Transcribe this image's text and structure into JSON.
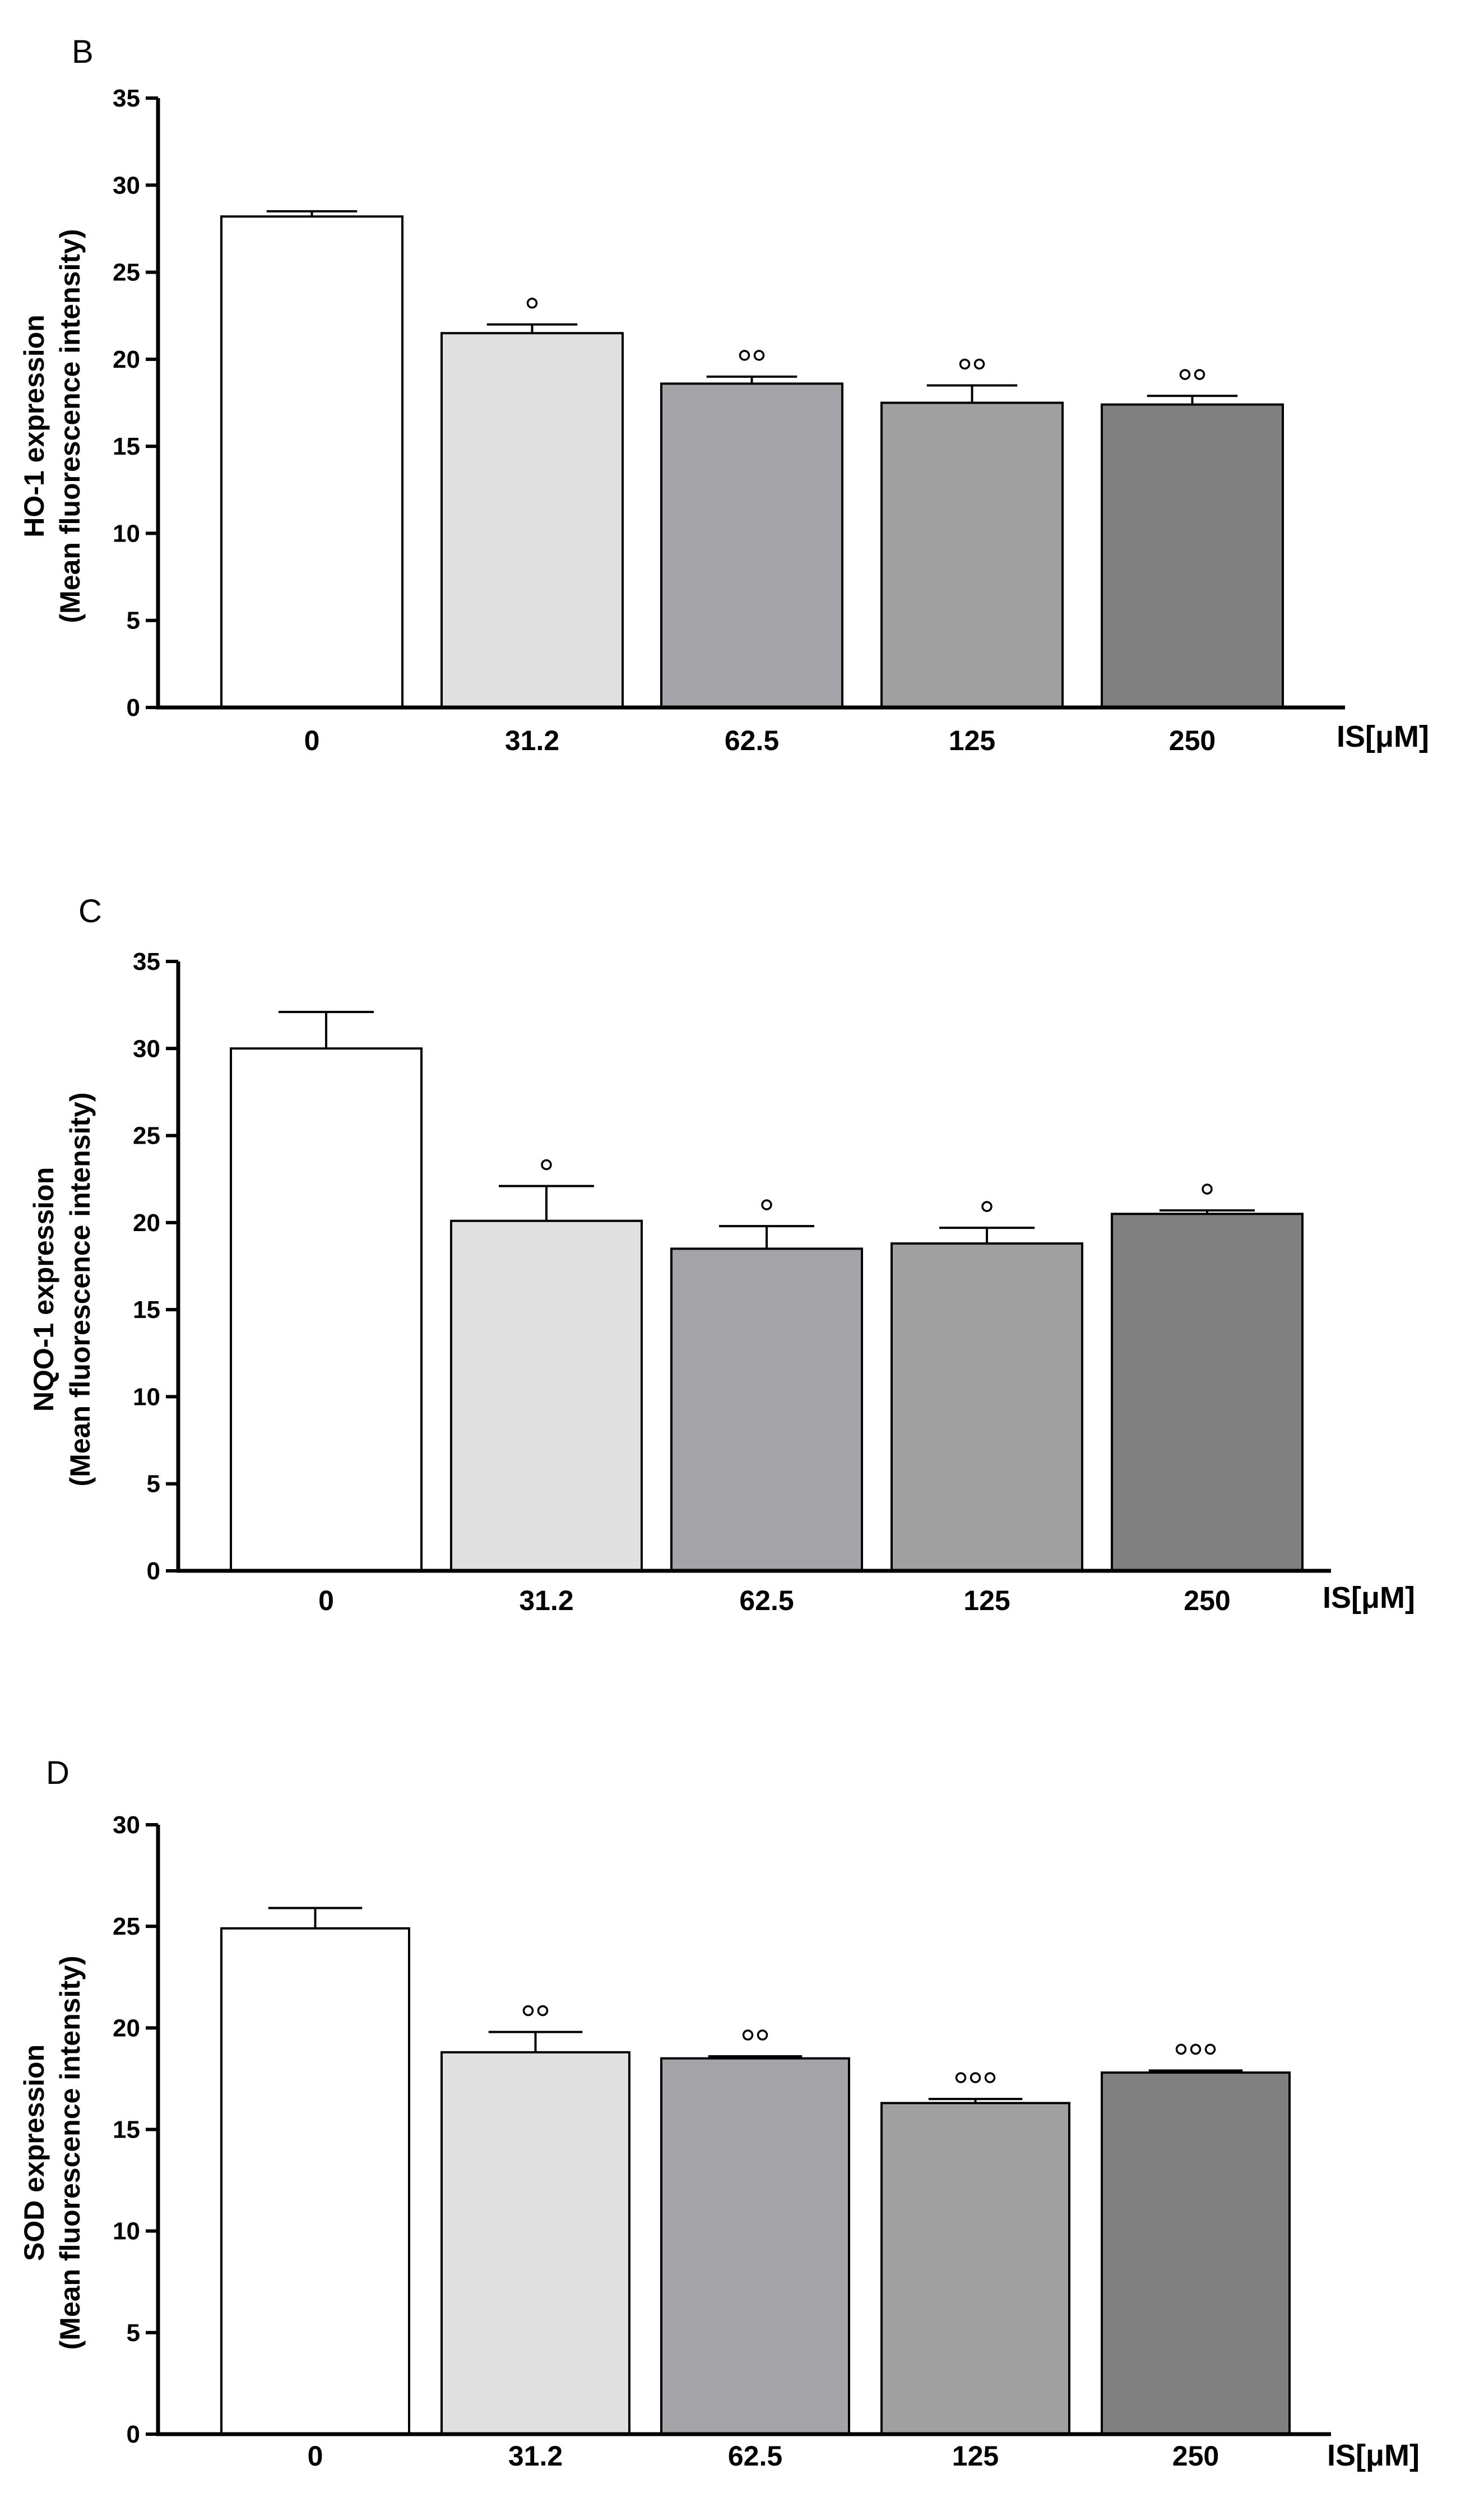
{
  "chart_data": [
    {
      "type": "bar",
      "panel": "B",
      "ylabel_line1": "HO-1 expression",
      "ylabel_line2": "(Mean fluorescence intensity)",
      "xlabel": "IS[μM]",
      "categories": [
        "0",
        "31.2",
        "62.5",
        "125",
        "250"
      ],
      "values": [
        28.2,
        21.5,
        18.6,
        17.5,
        17.4
      ],
      "errors": [
        0.3,
        0.5,
        0.4,
        1.0,
        0.5
      ],
      "significance": [
        "",
        "°",
        "°°",
        "°°",
        "°°"
      ],
      "ylim": [
        0,
        35
      ],
      "yticks": [
        0,
        5,
        10,
        15,
        20,
        25,
        30,
        35
      ],
      "colors": [
        "#ffffff",
        "#e0e0e0",
        "#a3a3a8",
        "#a0a0a0",
        "#808080"
      ]
    },
    {
      "type": "bar",
      "panel": "C",
      "ylabel_line1": "NQO-1 expression",
      "ylabel_line2": "(Mean fluorescence intensity)",
      "xlabel": "IS[μM]",
      "categories": [
        "0",
        "31.2",
        "62.5",
        "125",
        "250"
      ],
      "values": [
        30.0,
        20.1,
        18.5,
        18.8,
        20.5
      ],
      "errors": [
        2.1,
        2.0,
        1.3,
        0.9,
        0.2
      ],
      "significance": [
        "",
        "°",
        "°",
        "°",
        "°"
      ],
      "ylim": [
        0,
        35
      ],
      "yticks": [
        0,
        5,
        10,
        15,
        20,
        25,
        30,
        35
      ],
      "colors": [
        "#ffffff",
        "#e0e0e0",
        "#a3a3a8",
        "#a0a0a0",
        "#808080"
      ]
    },
    {
      "type": "bar",
      "panel": "D",
      "ylabel_line1": "SOD expression",
      "ylabel_line2": "(Mean fluorescence intensity)",
      "xlabel": "IS[μM]",
      "categories": [
        "0",
        "31.2",
        "62.5",
        "125",
        "250"
      ],
      "values": [
        24.9,
        18.8,
        18.5,
        16.3,
        17.8
      ],
      "errors": [
        1.0,
        1.0,
        0.1,
        0.2,
        0.1
      ],
      "significance": [
        "",
        "°°",
        "°°",
        "°°°",
        "°°°"
      ],
      "ylim": [
        0,
        30
      ],
      "yticks": [
        0,
        5,
        10,
        15,
        20,
        25,
        30
      ],
      "colors": [
        "#ffffff",
        "#e0e0e0",
        "#a3a3a8",
        "#a0a0a0",
        "#808080"
      ]
    }
  ]
}
